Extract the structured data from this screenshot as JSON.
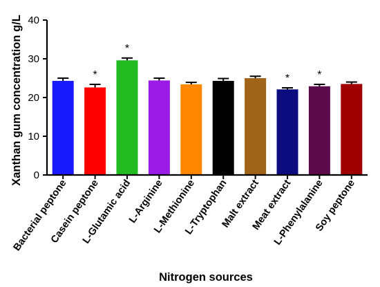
{
  "chart_data": {
    "type": "bar",
    "xlabel": "Nitrogen sources",
    "ylabel": "Xanthan gum concentration g/L",
    "ylim": [
      0,
      40
    ],
    "yticks": [
      0,
      10,
      20,
      30,
      40
    ],
    "categories": [
      "Bacterial peptone",
      "Casein peptone",
      "L-Glutamic acid",
      "L-Arginine",
      "L-Methionine",
      "L-Tryptophan",
      "Malt extract",
      "Meat extract",
      "L-Phenylalanine",
      "Soy peptone"
    ],
    "values": [
      24.3,
      22.6,
      29.6,
      24.4,
      23.4,
      24.3,
      25.0,
      22.1,
      22.9,
      23.5
    ],
    "errors": [
      0.7,
      0.8,
      0.6,
      0.6,
      0.5,
      0.6,
      0.5,
      0.4,
      0.5,
      0.5
    ],
    "significance": [
      "",
      "*",
      "*",
      "",
      "",
      "",
      "",
      "*",
      "*",
      ""
    ],
    "colors": [
      "#1a1aff",
      "#ff0000",
      "#22bb22",
      "#9a1ae6",
      "#ff8800",
      "#000000",
      "#a06418",
      "#0c0c80",
      "#5c0a4a",
      "#a00000"
    ],
    "grid": false,
    "legend": "none"
  }
}
